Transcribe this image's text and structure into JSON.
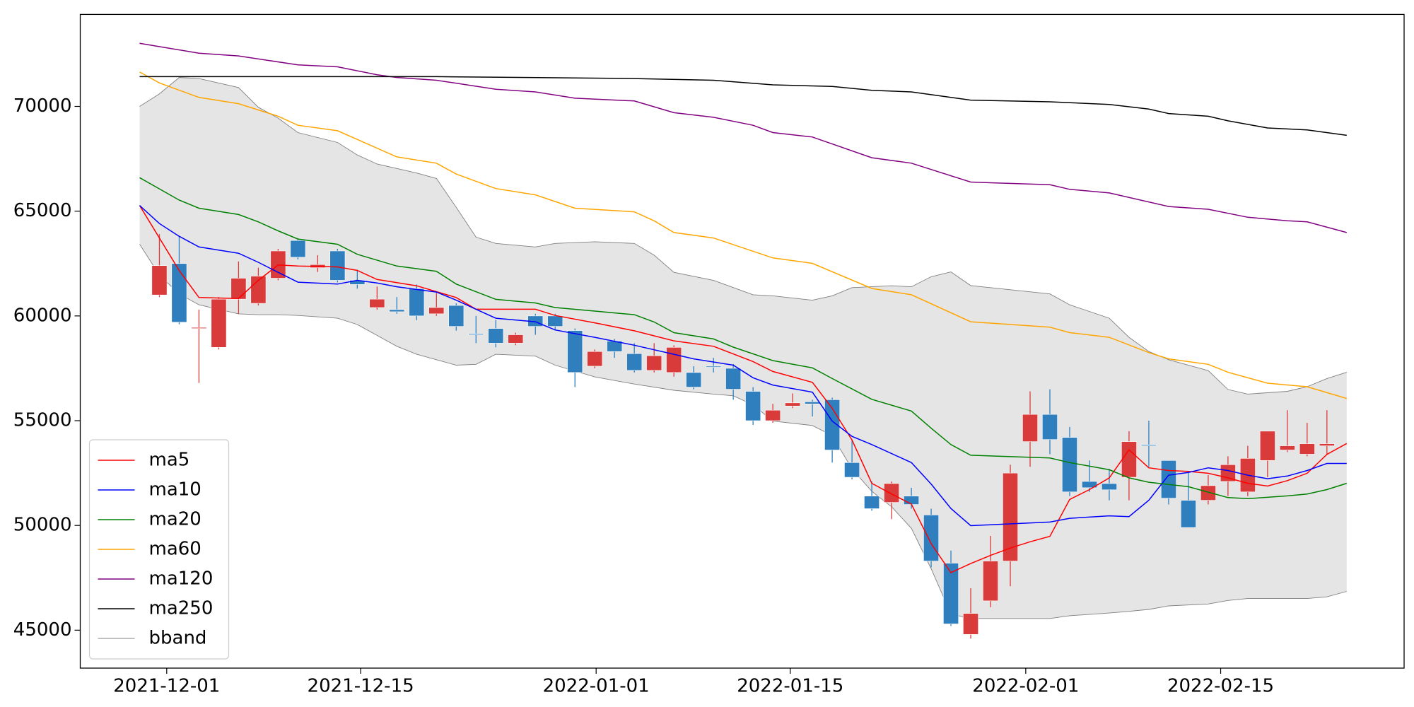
{
  "chart_data": {
    "type": "candlestick",
    "xlim": [
      -3.0,
      63.9
    ],
    "ylim": [
      43190,
      74390
    ],
    "xticks": [
      {
        "value": 1.37,
        "label": "2021-12-01"
      },
      {
        "value": 11.17,
        "label": "2021-12-15"
      },
      {
        "value": 23.07,
        "label": "2022-01-01"
      },
      {
        "value": 32.88,
        "label": "2022-01-15"
      },
      {
        "value": 44.78,
        "label": "2022-02-01"
      },
      {
        "value": 54.63,
        "label": "2022-02-15"
      }
    ],
    "yticks": [
      45000,
      50000,
      55000,
      60000,
      65000,
      70000
    ],
    "legend": "lower left",
    "up_color": "#d93a3a",
    "down_color": "#2f7fbf",
    "candles": {
      "x": [
        1,
        2,
        3,
        4,
        5,
        6,
        7,
        8,
        9,
        10,
        11,
        12,
        13,
        14,
        15,
        16,
        17,
        18,
        19,
        20,
        21,
        22,
        23,
        24,
        25,
        26,
        27,
        28,
        29,
        30,
        31,
        32,
        33,
        34,
        35,
        36,
        37,
        38,
        39,
        40,
        41,
        42,
        43,
        44,
        45,
        46,
        47,
        48,
        49,
        50,
        51,
        52,
        53,
        54,
        55,
        56,
        57,
        58,
        59,
        60
      ],
      "open": [
        61000,
        62500,
        59400,
        58500,
        60800,
        60600,
        61800,
        63600,
        62300,
        63100,
        61700,
        60400,
        60300,
        61300,
        60100,
        60500,
        59150,
        59400,
        58700,
        60000,
        60000,
        59300,
        57600,
        58800,
        58200,
        57400,
        57300,
        57300,
        57600,
        57500,
        56400,
        55000,
        55700,
        55900,
        56000,
        53000,
        51400,
        51100,
        51400,
        50500,
        48200,
        44800,
        46400,
        48300,
        54000,
        55300,
        54200,
        52100,
        52000,
        52300,
        53850,
        53100,
        51200,
        51200,
        52100,
        51600,
        53100,
        53600,
        53400,
        53800
      ],
      "high": [
        63900,
        63800,
        60300,
        60900,
        62600,
        62300,
        63200,
        63700,
        62900,
        63200,
        62200,
        61400,
        60900,
        61500,
        61100,
        60600,
        60000,
        59800,
        59200,
        60100,
        60100,
        59400,
        58400,
        58900,
        58700,
        58700,
        58600,
        57600,
        58000,
        57700,
        56600,
        55800,
        56300,
        56000,
        56100,
        54100,
        52100,
        52100,
        51800,
        50800,
        48800,
        47000,
        49500,
        52900,
        56400,
        56500,
        54700,
        53100,
        52700,
        54500,
        55000,
        53100,
        52500,
        52400,
        53300,
        53800,
        54500,
        55500,
        54900,
        55500
      ],
      "low": [
        60900,
        59600,
        56800,
        58400,
        60100,
        60500,
        61700,
        62700,
        62100,
        61600,
        61300,
        60300,
        60100,
        59800,
        60000,
        59300,
        58700,
        58500,
        58600,
        59100,
        59300,
        56600,
        57500,
        58000,
        57300,
        57300,
        57100,
        56500,
        57300,
        56000,
        54800,
        54900,
        55600,
        55200,
        53000,
        52200,
        50700,
        50300,
        50800,
        48000,
        45200,
        44600,
        46100,
        47100,
        52800,
        53400,
        51400,
        51600,
        51200,
        51200,
        52800,
        51000,
        49900,
        51000,
        51400,
        51400,
        52300,
        53500,
        53300,
        53400
      ],
      "close": [
        62400,
        59700,
        59450,
        60800,
        61800,
        61900,
        63100,
        62800,
        62450,
        61700,
        61500,
        60800,
        60200,
        60000,
        60400,
        59500,
        59100,
        58700,
        59100,
        59500,
        59500,
        57300,
        58300,
        58300,
        57400,
        58100,
        58500,
        56600,
        57550,
        56500,
        55000,
        55500,
        55850,
        55800,
        53600,
        52300,
        50800,
        52000,
        51000,
        48300,
        45300,
        45800,
        48300,
        52500,
        55300,
        54100,
        51600,
        51800,
        51700,
        54000,
        53800,
        51300,
        49900,
        51900,
        52900,
        53200,
        54500,
        53800,
        53900,
        53900
      ]
    },
    "series": [
      {
        "name": "ma5",
        "color": "#ff0000",
        "x": [
          0,
          2,
          3,
          5,
          6,
          7,
          8,
          10,
          11,
          12,
          14,
          16,
          17,
          18,
          20,
          21,
          23,
          25,
          27,
          29,
          31,
          32,
          34,
          35,
          36,
          37,
          38,
          39,
          40,
          41,
          42,
          43,
          44,
          45,
          46,
          47,
          48,
          49,
          50,
          51,
          52,
          53,
          54,
          55,
          56,
          57,
          58,
          59,
          60,
          61
        ],
        "values": [
          65270,
          62170,
          60880,
          60830,
          61700,
          62430,
          62380,
          62340,
          62170,
          61740,
          61440,
          60880,
          60320,
          60320,
          60320,
          60020,
          59670,
          59290,
          58810,
          58550,
          57820,
          57350,
          56830,
          55590,
          54080,
          52010,
          51500,
          51020,
          49130,
          47750,
          48180,
          48570,
          48920,
          49220,
          49480,
          51240,
          51710,
          52270,
          53610,
          52750,
          52620,
          52580,
          52490,
          52270,
          52010,
          51880,
          52140,
          52490,
          53390,
          53910
        ]
      },
      {
        "name": "ma10",
        "color": "#0000ff",
        "x": [
          0,
          1,
          2,
          3,
          5,
          6,
          7,
          8,
          10,
          11,
          12,
          13,
          15,
          16,
          17,
          18,
          20,
          21,
          23,
          25,
          27,
          28,
          30,
          31,
          32,
          34,
          35,
          36,
          37,
          39,
          40,
          41,
          42,
          43,
          46,
          47,
          49,
          50,
          51,
          52,
          53,
          54,
          55,
          56,
          57,
          58,
          59,
          60,
          61
        ],
        "values": [
          65270,
          64410,
          63800,
          63290,
          62990,
          62560,
          62080,
          61610,
          61520,
          61700,
          61570,
          61390,
          61140,
          60750,
          60320,
          59890,
          59720,
          59330,
          58980,
          58600,
          58170,
          57950,
          57650,
          57050,
          56700,
          56360,
          54980,
          54250,
          53860,
          53000,
          51970,
          50810,
          49990,
          50030,
          50160,
          50340,
          50460,
          50420,
          51200,
          52400,
          52530,
          52750,
          52620,
          52400,
          52230,
          52360,
          52620,
          52960,
          52960
        ]
      },
      {
        "name": "ma20",
        "color": "#008000",
        "x": [
          0,
          2,
          3,
          5,
          6,
          7,
          8,
          10,
          11,
          13,
          15,
          16,
          18,
          20,
          21,
          23,
          25,
          26,
          27,
          29,
          30,
          32,
          34,
          35,
          37,
          39,
          40,
          41,
          42,
          46,
          47,
          49,
          50,
          51,
          53,
          54,
          55,
          56,
          58,
          59,
          60,
          61
        ],
        "values": [
          66600,
          65530,
          65140,
          64840,
          64490,
          64060,
          63670,
          63420,
          62940,
          62380,
          62130,
          61520,
          60790,
          60620,
          60400,
          60230,
          60060,
          59710,
          59200,
          58900,
          58510,
          57870,
          57520,
          57010,
          56020,
          55460,
          54640,
          53860,
          53350,
          53220,
          53000,
          52660,
          52270,
          52060,
          51850,
          51590,
          51330,
          51280,
          51410,
          51500,
          51710,
          52010
        ]
      },
      {
        "name": "ma60",
        "color": "#ffa500",
        "x": [
          0,
          1,
          3,
          5,
          7,
          8,
          10,
          13,
          15,
          16,
          18,
          20,
          22,
          25,
          26,
          27,
          29,
          32,
          34,
          37,
          39,
          42,
          46,
          47,
          49,
          51,
          52,
          54,
          55,
          57,
          59,
          61
        ],
        "values": [
          71640,
          71120,
          70430,
          70130,
          69530,
          69100,
          68840,
          67590,
          67290,
          66770,
          66080,
          65780,
          65140,
          64970,
          64540,
          63980,
          63720,
          62770,
          62510,
          61310,
          61010,
          59720,
          59460,
          59200,
          58980,
          58250,
          57950,
          57690,
          57310,
          56790,
          56620,
          56060
        ]
      },
      {
        "name": "ma120",
        "color": "#800080",
        "x": [
          0,
          3,
          5,
          8,
          10,
          12,
          13,
          15,
          18,
          20,
          22,
          25,
          27,
          29,
          31,
          32,
          34,
          37,
          39,
          42,
          46,
          47,
          49,
          52,
          54,
          56,
          58,
          59,
          61
        ],
        "values": [
          73010,
          72540,
          72410,
          71980,
          71890,
          71510,
          71380,
          71250,
          70820,
          70690,
          70390,
          70260,
          69700,
          69480,
          69100,
          68750,
          68540,
          67550,
          67290,
          66390,
          66260,
          66040,
          65870,
          65220,
          65090,
          64710,
          64540,
          64490,
          63980
        ]
      },
      {
        "name": "ma250",
        "color": "#000000",
        "x": [
          0,
          7,
          15,
          25,
          29,
          32,
          35,
          37,
          39,
          42,
          46,
          49,
          51,
          52,
          54,
          55,
          57,
          59,
          61
        ],
        "values": [
          71420,
          71420,
          71420,
          71330,
          71250,
          71030,
          70950,
          70770,
          70690,
          70300,
          70220,
          70090,
          69870,
          69660,
          69530,
          69310,
          68970,
          68880,
          68620
        ]
      },
      {
        "name": "bband",
        "color": "#808080",
        "fill": "#e5e5e5",
        "upper": {
          "x": [
            0,
            1,
            2,
            3,
            5,
            6,
            7,
            8,
            10,
            11,
            12,
            14,
            15,
            16,
            17,
            18,
            20,
            21,
            23,
            25,
            26,
            27,
            29,
            31,
            32,
            34,
            35,
            36,
            38,
            39,
            40,
            41,
            42,
            46,
            47,
            49,
            50,
            51,
            52,
            54,
            55,
            56,
            58,
            59,
            60,
            61
          ],
          "values": [
            70000,
            70600,
            71380,
            71330,
            70900,
            69960,
            69440,
            68750,
            68280,
            67680,
            67250,
            66820,
            66560,
            65180,
            63760,
            63460,
            63290,
            63460,
            63540,
            63460,
            62900,
            62080,
            61700,
            61010,
            60960,
            60750,
            60960,
            61350,
            61440,
            61390,
            61870,
            62100,
            61450,
            61050,
            60530,
            59890,
            58980,
            58300,
            57910,
            57390,
            56490,
            56270,
            56400,
            56620,
            57010,
            57310
          ]
        },
        "lower": {
          "x": [
            0,
            1,
            2,
            3,
            5,
            6,
            7,
            8,
            10,
            11,
            12,
            13,
            14,
            15,
            16,
            17,
            18,
            20,
            21,
            23,
            25,
            27,
            29,
            30,
            31,
            32,
            34,
            35,
            36,
            37,
            38,
            39,
            40,
            41,
            42,
            46,
            47,
            49,
            50,
            51,
            52,
            54,
            55,
            56,
            59,
            60,
            61
          ],
          "values": [
            63420,
            61950,
            61050,
            60530,
            60100,
            60060,
            60060,
            60020,
            59890,
            59590,
            59070,
            58550,
            58170,
            57910,
            57650,
            57690,
            58170,
            58080,
            57650,
            57090,
            56750,
            56450,
            56270,
            56190,
            55760,
            54980,
            54770,
            54290,
            52700,
            51630,
            50890,
            49860,
            47930,
            45770,
            45560,
            45560,
            45690,
            45820,
            45900,
            45990,
            46160,
            46250,
            46420,
            46510,
            46510,
            46590,
            46850
          ]
        }
      }
    ]
  }
}
